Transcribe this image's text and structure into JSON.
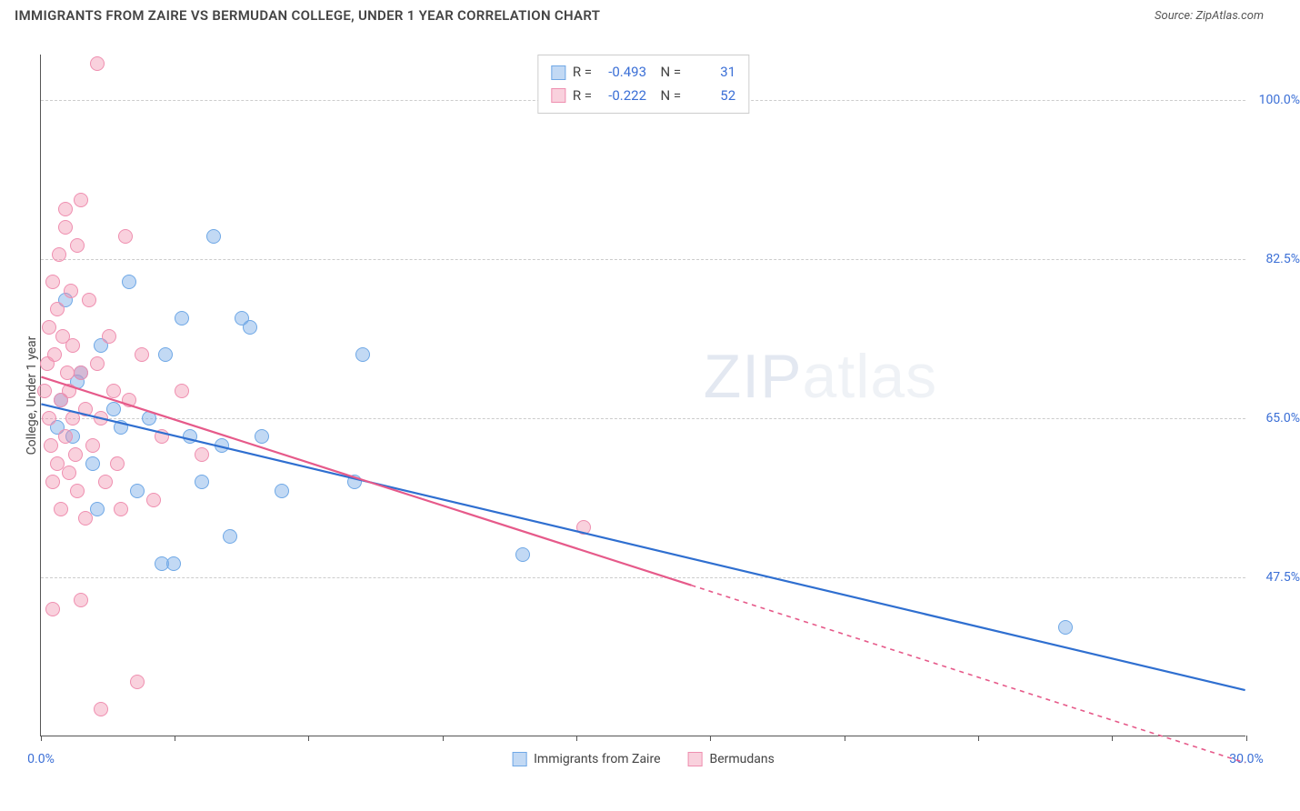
{
  "header": {
    "title": "IMMIGRANTS FROM ZAIRE VS BERMUDAN COLLEGE, UNDER 1 YEAR CORRELATION CHART",
    "source_prefix": "Source: ",
    "source_name": "ZipAtlas.com"
  },
  "watermark": {
    "bold": "ZIP",
    "light": "atlas"
  },
  "chart": {
    "type": "scatter",
    "y_axis_label": "College, Under 1 year",
    "background_color": "#ffffff",
    "grid_color": "#cccccc",
    "axis_color": "#555555",
    "label_color": "#3b6fd6",
    "x_range": [
      0,
      30
    ],
    "y_range": [
      30,
      105
    ],
    "x_ticks": [
      0,
      3.33,
      6.66,
      10,
      13.33,
      16.66,
      20,
      23.33,
      26.66,
      30
    ],
    "x_tick_labels": {
      "0": "0.0%",
      "30": "30.0%"
    },
    "y_grid": [
      47.5,
      65.0,
      82.5,
      100.0
    ],
    "y_tick_labels": {
      "47.5": "47.5%",
      "65.0": "65.0%",
      "82.5": "82.5%",
      "100.0": "100.0%"
    },
    "series": [
      {
        "key": "zaire",
        "label": "Immigrants from Zaire",
        "marker_fill": "rgba(120,170,230,0.45)",
        "marker_stroke": "#6fa8e6",
        "line_color": "#2f6fd0",
        "R": "-0.493",
        "N": "31",
        "trend": {
          "x1": 0,
          "y1": 66.5,
          "x2": 30,
          "y2": 35.0,
          "solid_until_x": 30
        },
        "points": [
          [
            0.4,
            64
          ],
          [
            0.5,
            67
          ],
          [
            0.6,
            78
          ],
          [
            0.8,
            63
          ],
          [
            1.0,
            70
          ],
          [
            1.3,
            60
          ],
          [
            1.4,
            55
          ],
          [
            1.5,
            73
          ],
          [
            1.8,
            66
          ],
          [
            2.0,
            64
          ],
          [
            2.2,
            80
          ],
          [
            2.4,
            57
          ],
          [
            2.7,
            65
          ],
          [
            3.0,
            49
          ],
          [
            3.1,
            72
          ],
          [
            3.3,
            49
          ],
          [
            3.5,
            76
          ],
          [
            3.7,
            63
          ],
          [
            4.0,
            58
          ],
          [
            4.3,
            85
          ],
          [
            4.5,
            62
          ],
          [
            4.7,
            52
          ],
          [
            5.0,
            76
          ],
          [
            5.2,
            75
          ],
          [
            5.5,
            63
          ],
          [
            6.0,
            57
          ],
          [
            7.8,
            58
          ],
          [
            8.0,
            72
          ],
          [
            12.0,
            50
          ],
          [
            25.5,
            42
          ],
          [
            0.9,
            69
          ]
        ]
      },
      {
        "key": "bermudans",
        "label": "Bermudans",
        "marker_fill": "rgba(240,140,170,0.40)",
        "marker_stroke": "#ef8fb0",
        "line_color": "#e65a8a",
        "R": "-0.222",
        "N": "52",
        "trend": {
          "x1": 0,
          "y1": 69.5,
          "x2": 30,
          "y2": 27.0,
          "solid_until_x": 16.2
        },
        "points": [
          [
            0.1,
            68
          ],
          [
            0.15,
            71
          ],
          [
            0.2,
            65
          ],
          [
            0.2,
            75
          ],
          [
            0.25,
            62
          ],
          [
            0.3,
            58
          ],
          [
            0.3,
            80
          ],
          [
            0.35,
            72
          ],
          [
            0.4,
            60
          ],
          [
            0.4,
            77
          ],
          [
            0.45,
            83
          ],
          [
            0.5,
            67
          ],
          [
            0.5,
            55
          ],
          [
            0.55,
            74
          ],
          [
            0.6,
            63
          ],
          [
            0.6,
            86
          ],
          [
            0.65,
            70
          ],
          [
            0.7,
            68
          ],
          [
            0.7,
            59
          ],
          [
            0.75,
            79
          ],
          [
            0.8,
            65
          ],
          [
            0.8,
            73
          ],
          [
            0.85,
            61
          ],
          [
            0.9,
            84
          ],
          [
            0.9,
            57
          ],
          [
            1.0,
            89
          ],
          [
            1.0,
            70
          ],
          [
            1.1,
            66
          ],
          [
            1.1,
            54
          ],
          [
            1.2,
            78
          ],
          [
            1.3,
            62
          ],
          [
            1.4,
            71
          ],
          [
            1.5,
            65
          ],
          [
            1.6,
            58
          ],
          [
            1.7,
            74
          ],
          [
            1.8,
            68
          ],
          [
            1.9,
            60
          ],
          [
            2.0,
            55
          ],
          [
            2.1,
            85
          ],
          [
            2.2,
            67
          ],
          [
            2.5,
            72
          ],
          [
            2.8,
            56
          ],
          [
            3.0,
            63
          ],
          [
            3.5,
            68
          ],
          [
            4.0,
            61
          ],
          [
            0.3,
            44
          ],
          [
            1.0,
            45
          ],
          [
            1.5,
            33
          ],
          [
            2.4,
            36
          ],
          [
            0.6,
            88
          ],
          [
            1.4,
            104
          ],
          [
            13.5,
            53
          ]
        ]
      }
    ]
  }
}
